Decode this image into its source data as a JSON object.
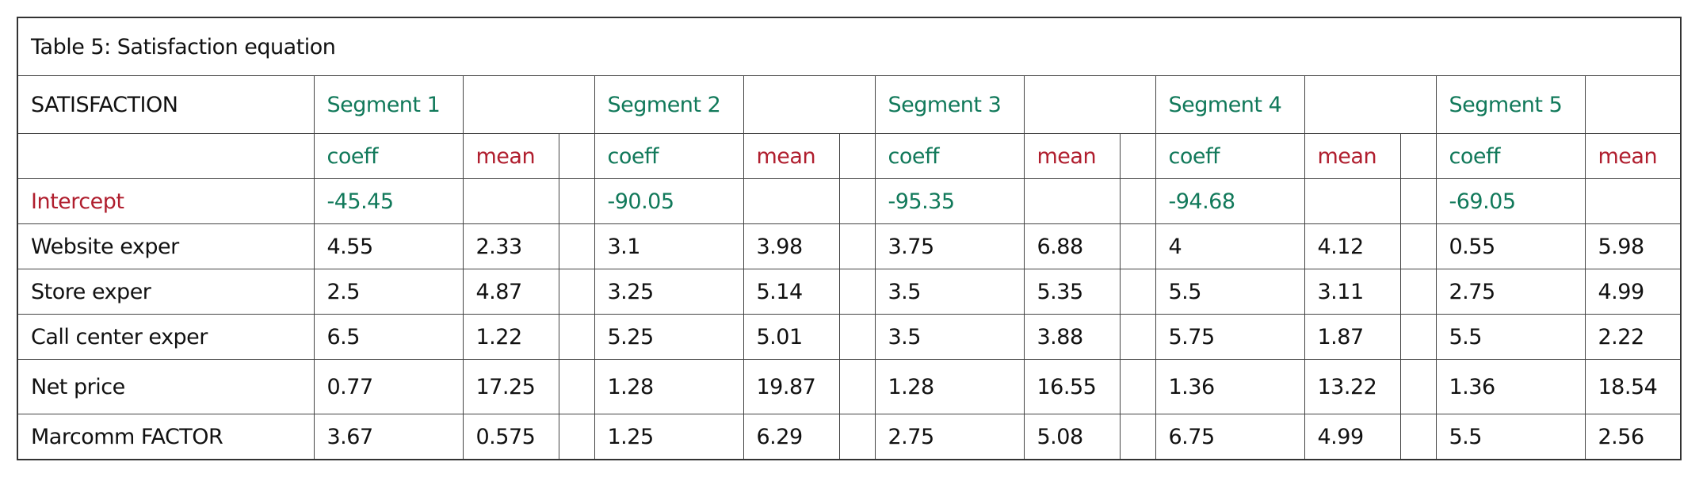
{
  "title": "Table 5: Satisfaction equation",
  "header": {
    "label": "SATISFACTION",
    "segments": [
      {
        "name": "Segment 1",
        "coeff": "coeff",
        "mean": "mean"
      },
      {
        "name": "Segment 2",
        "coeff": "coeff",
        "mean": "mean"
      },
      {
        "name": "Segment 3",
        "coeff": "coeff",
        "mean": "mean"
      },
      {
        "name": "Segment 4",
        "coeff": "coeff",
        "mean": "mean"
      },
      {
        "name": "Segment 5",
        "coeff": "coeff",
        "mean": "mean"
      }
    ]
  },
  "rows": [
    {
      "label": "Intercept",
      "values": [
        [
          -45.45,
          null
        ],
        [
          -90.05,
          null
        ],
        [
          -95.35,
          null
        ],
        [
          -94.68,
          null
        ],
        [
          -69.05,
          null
        ]
      ]
    },
    {
      "label": "Website exper",
      "values": [
        [
          4.55,
          2.33
        ],
        [
          3.1,
          3.98
        ],
        [
          3.75,
          6.88
        ],
        [
          4,
          4.12
        ],
        [
          0.55,
          5.98
        ]
      ]
    },
    {
      "label": "Store exper",
      "values": [
        [
          2.5,
          4.87
        ],
        [
          3.25,
          5.14
        ],
        [
          3.5,
          5.35
        ],
        [
          5.5,
          3.11
        ],
        [
          2.75,
          4.99
        ]
      ]
    },
    {
      "label": "Call center exper",
      "values": [
        [
          6.5,
          1.22
        ],
        [
          5.25,
          5.01
        ],
        [
          3.5,
          3.88
        ],
        [
          5.75,
          1.87
        ],
        [
          5.5,
          2.22
        ]
      ]
    },
    {
      "label": "Net price",
      "values": [
        [
          0.77,
          17.25
        ],
        [
          1.28,
          19.87
        ],
        [
          1.28,
          16.55
        ],
        [
          1.36,
          13.22
        ],
        [
          1.36,
          18.54
        ]
      ]
    },
    {
      "label": "Marcomm FACTOR",
      "values": [
        [
          3.67,
          0.575
        ],
        [
          1.25,
          6.29
        ],
        [
          2.75,
          5.08
        ],
        [
          6.75,
          4.99
        ],
        [
          5.5,
          2.56
        ]
      ]
    }
  ]
}
